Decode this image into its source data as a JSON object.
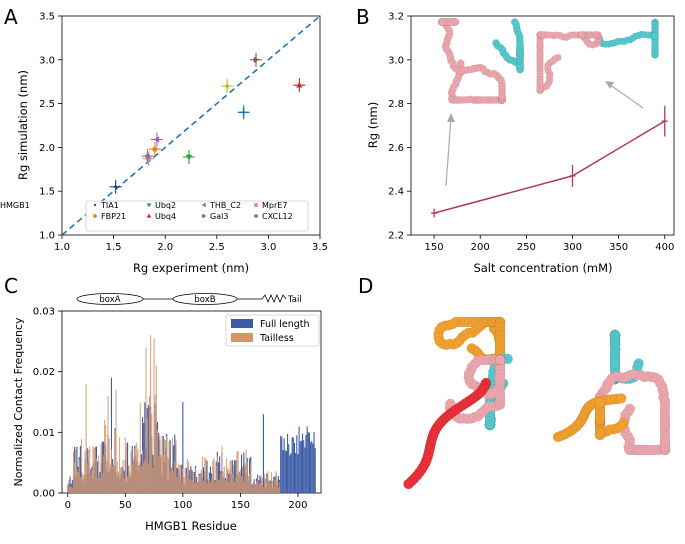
{
  "colors": {
    "diag": "#1f77b4",
    "salt_line": "#b03a5b",
    "full": "#3b5ba5",
    "tailless": "#d4956b",
    "cyan": "#55c8cc",
    "pink": "#eba6ad",
    "orange": "#f0a030",
    "red": "#e83038"
  },
  "chart_data": [
    {
      "panel": "A",
      "type": "scatter",
      "xlabel": "Rg experiment (nm)",
      "ylabel": "Rg simulation (nm)",
      "xlim": [
        1.0,
        3.5
      ],
      "ylim": [
        1.0,
        3.5
      ],
      "xticks": [
        "1.0",
        "1.5",
        "2.0",
        "2.5",
        "3.0",
        "3.5"
      ],
      "yticks": [
        "1.0",
        "1.5",
        "2.0",
        "2.5",
        "3.0",
        "3.5"
      ],
      "diagonal": true,
      "points": [
        {
          "name": "TIA1",
          "x": 1.52,
          "y": 1.55,
          "color": "#1f3c88",
          "marker": "dot"
        },
        {
          "name": "FBP21",
          "x": 1.9,
          "y": 1.98,
          "color": "#f07f1e",
          "marker": "circle"
        },
        {
          "name": "Ubq2",
          "x": 2.23,
          "y": 1.89,
          "color": "#2ca02c",
          "marker": "tri-down"
        },
        {
          "name": "Ubq4",
          "x": 3.3,
          "y": 2.71,
          "color": "#d62728",
          "marker": "tri-up"
        },
        {
          "name": "THB_C2",
          "x": 1.92,
          "y": 2.09,
          "color": "#9467bd",
          "marker": "tri-left"
        },
        {
          "name": "Gal3",
          "x": 2.88,
          "y": 3.0,
          "color": "#8c564b",
          "marker": "tri-right"
        },
        {
          "name": "MprE7",
          "x": 1.84,
          "y": 1.87,
          "color": "#e377c2",
          "marker": "square"
        },
        {
          "name": "CXCL12",
          "x": 1.83,
          "y": 1.9,
          "color": "#7f7f7f",
          "marker": "hex"
        },
        {
          "name": "HMGB1",
          "x": 2.6,
          "y": 2.7,
          "color": "#bcbd22",
          "marker": "diamond"
        },
        {
          "name": "",
          "x": 2.76,
          "y": 2.4,
          "color": "#1f77b4",
          "marker": "plus"
        }
      ]
    },
    {
      "panel": "B",
      "type": "line",
      "xlabel": "Salt concentration (mM)",
      "ylabel": "Rg (nm)",
      "xlim": [
        125,
        410
      ],
      "ylim": [
        2.2,
        3.2
      ],
      "xticks": [
        "150",
        "200",
        "250",
        "300",
        "350",
        "400"
      ],
      "yticks": [
        "2.2",
        "2.4",
        "2.6",
        "2.8",
        "3.0",
        "3.2"
      ],
      "x": [
        150,
        300,
        400
      ],
      "y": [
        2.3,
        2.47,
        2.72
      ],
      "err": [
        0.02,
        0.05,
        0.07
      ]
    },
    {
      "panel": "C",
      "type": "bar",
      "xlabel": "HMGB1 Residue",
      "ylabel": "Normalized Contact Frequency",
      "xlim": [
        -5,
        220
      ],
      "ylim": [
        0,
        0.03
      ],
      "xticks": [
        "0",
        "50",
        "100",
        "150",
        "200"
      ],
      "yticks": [
        "0.00",
        "0.01",
        "0.02",
        "0.03"
      ],
      "series": [
        {
          "name": "Full length"
        },
        {
          "name": "Tailless"
        }
      ],
      "domains": {
        "boxA": "boxA",
        "boxB": "boxB",
        "tail": "Tail"
      }
    }
  ],
  "panel_labels": {
    "a": "A",
    "b": "B",
    "c": "C",
    "d": "D"
  }
}
